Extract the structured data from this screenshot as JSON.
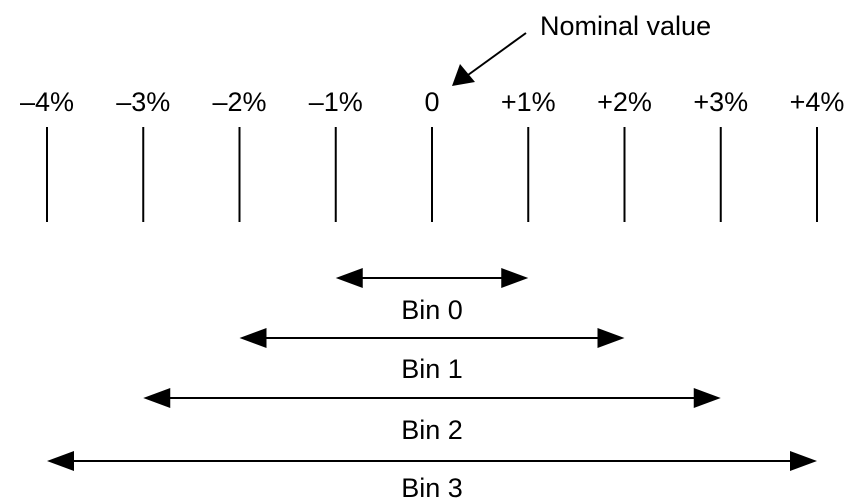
{
  "annotation": {
    "label": "Nominal value",
    "points_to": 0
  },
  "axis": {
    "unit": "%",
    "range": [
      -4,
      4
    ],
    "ticks": [
      {
        "value": -4,
        "label": "–4%"
      },
      {
        "value": -3,
        "label": "–3%"
      },
      {
        "value": -2,
        "label": "–2%"
      },
      {
        "value": -1,
        "label": "–1%"
      },
      {
        "value": 0,
        "label": "0"
      },
      {
        "value": 1,
        "label": "+1%"
      },
      {
        "value": 2,
        "label": "+2%"
      },
      {
        "value": 3,
        "label": "+3%"
      },
      {
        "value": 4,
        "label": "+4%"
      }
    ]
  },
  "bins": [
    {
      "label": "Bin 0",
      "from": -1,
      "to": 1
    },
    {
      "label": "Bin 1",
      "from": -2,
      "to": 2
    },
    {
      "label": "Bin 2",
      "from": -3,
      "to": 3
    },
    {
      "label": "Bin 3",
      "from": -4,
      "to": 4
    }
  ],
  "colors": {
    "line": "#000000",
    "text": "#000000",
    "background": "#ffffff"
  }
}
